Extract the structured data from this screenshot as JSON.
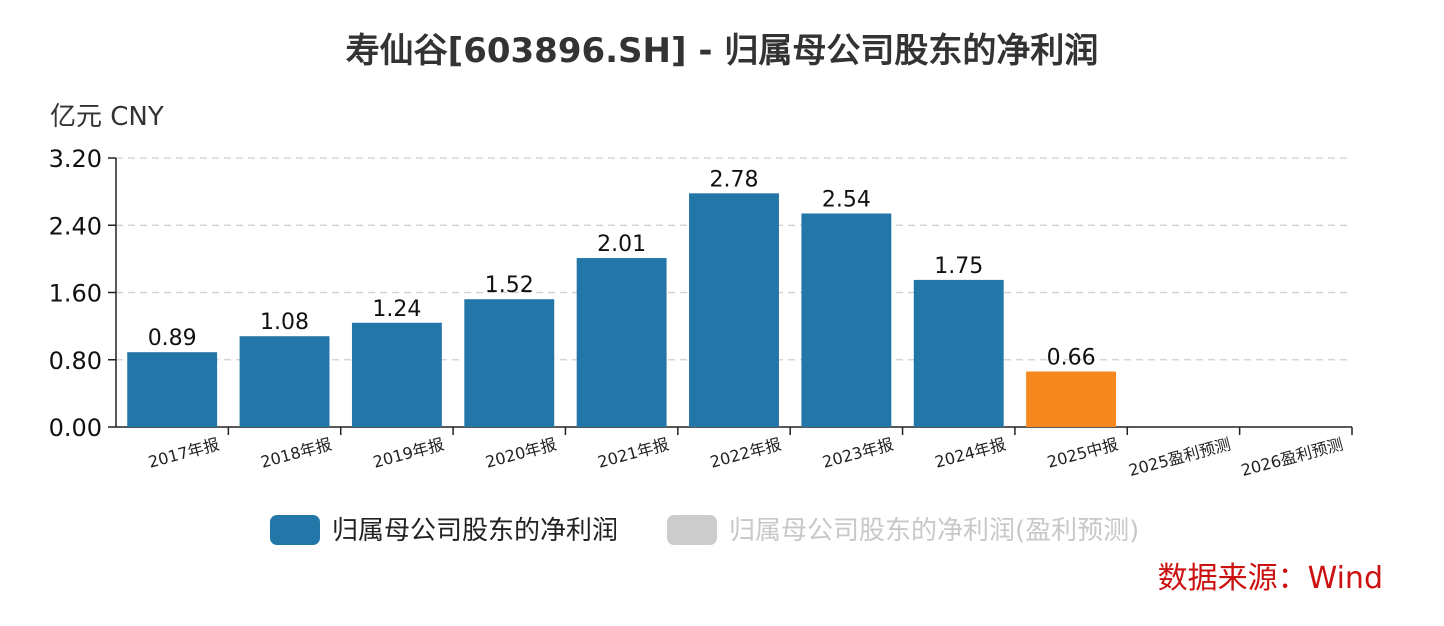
{
  "chart_data": {
    "type": "bar",
    "title": "寿仙谷[603896.SH] - 归属母公司股东的净利润",
    "unit_label": "亿元  CNY",
    "categories": [
      "2017年报",
      "2018年报",
      "2019年报",
      "2020年报",
      "2021年报",
      "2022年报",
      "2023年报",
      "2024年报",
      "2025中报",
      "2025盈利预测",
      "2026盈利预测"
    ],
    "values": [
      0.89,
      1.08,
      1.24,
      1.52,
      2.01,
      2.78,
      2.54,
      1.75,
      0.66,
      null,
      null
    ],
    "value_labels": [
      "0.89",
      "1.08",
      "1.24",
      "1.52",
      "2.01",
      "2.78",
      "2.54",
      "1.75",
      "0.66",
      "",
      ""
    ],
    "bar_colors": [
      "#2376a8",
      "#2376a8",
      "#2376a8",
      "#2376a8",
      "#2376a8",
      "#2376a8",
      "#2376a8",
      "#2376a8",
      "#f5891f",
      "#2376a8",
      "#2376a8"
    ],
    "yticks": [
      "0.00",
      "0.80",
      "1.60",
      "2.40",
      "3.20"
    ],
    "ylim": [
      0,
      3.2
    ],
    "grid": true,
    "legend_placement": "bottom",
    "legend": [
      {
        "name": "归属母公司股东的净利润",
        "color": "#2376a8",
        "text_color": "#222222"
      },
      {
        "name": "归属母公司股东的净利润(盈利预测)",
        "color": "#cccccc",
        "text_color": "#c8c8c8"
      }
    ]
  },
  "source": "数据来源：Wind"
}
